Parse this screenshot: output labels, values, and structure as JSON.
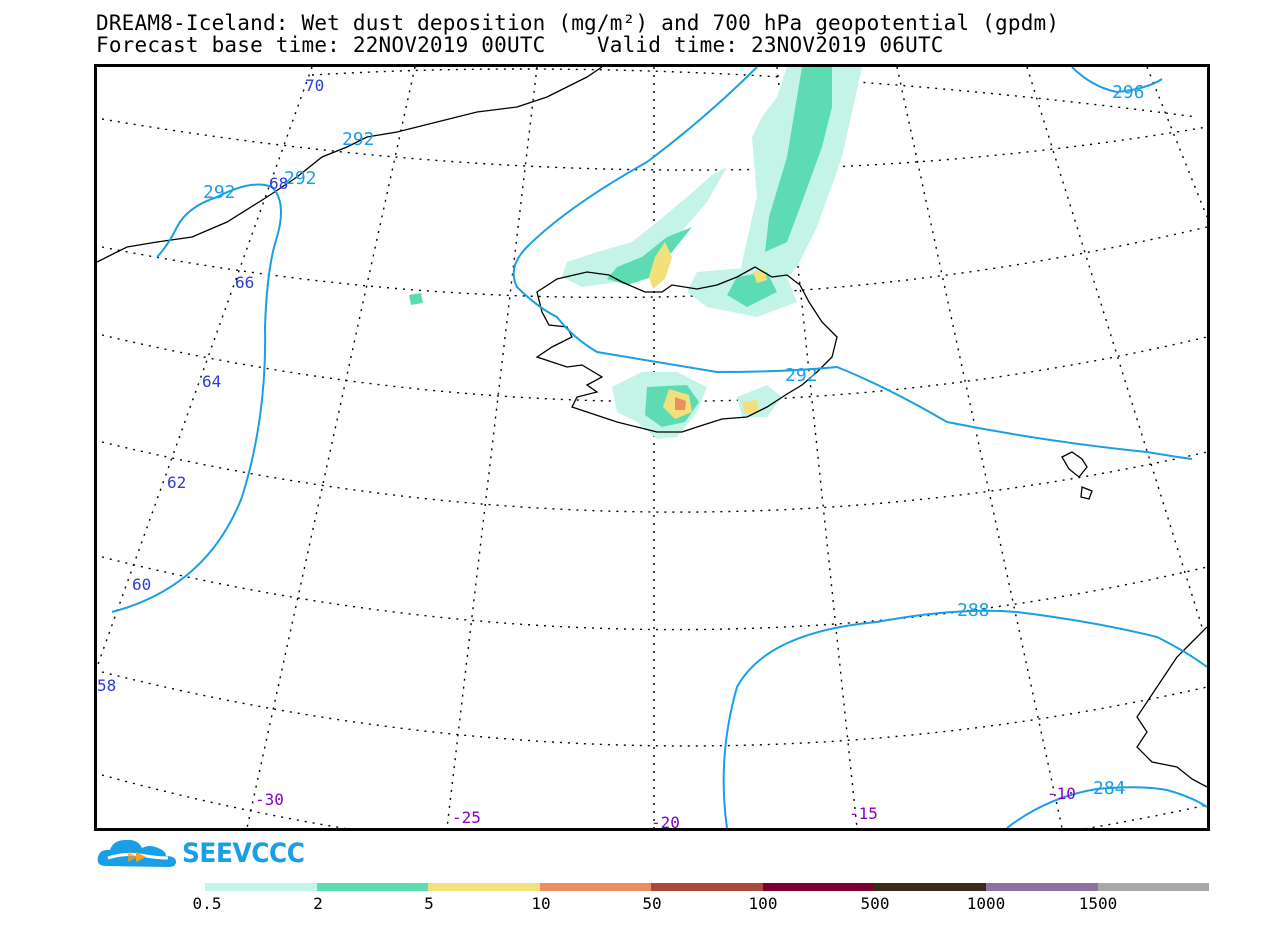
{
  "title": {
    "line1": "DREAM8-Iceland: Wet dust deposition (mg/m²) and 700 hPa geopotential (gpdm)",
    "line2": "Forecast base time: 22NOV2019 00UTC    Valid time: 23NOV2019 06UTC"
  },
  "map": {
    "latitude_labels": [
      "70",
      "68",
      "66",
      "64",
      "62",
      "60",
      "58"
    ],
    "longitude_labels": [
      "-30",
      "-25",
      "-20",
      "-15",
      "-10"
    ],
    "geopotential_labels": [
      "296",
      "292",
      "292",
      "292",
      "292",
      "288",
      "284"
    ]
  },
  "logo": {
    "text": "SEEVCCC"
  },
  "colorbar": {
    "labels": [
      "0.5",
      "2",
      "5",
      "10",
      "50",
      "100",
      "500",
      "1000",
      "1500"
    ],
    "colors": [
      "#c4f3e8",
      "#5ddcb4",
      "#f4e07a",
      "#ea9060",
      "#a84a3c",
      "#7a0030",
      "#3e2a1a",
      "#9070a0",
      "#a8a8a8"
    ]
  }
}
